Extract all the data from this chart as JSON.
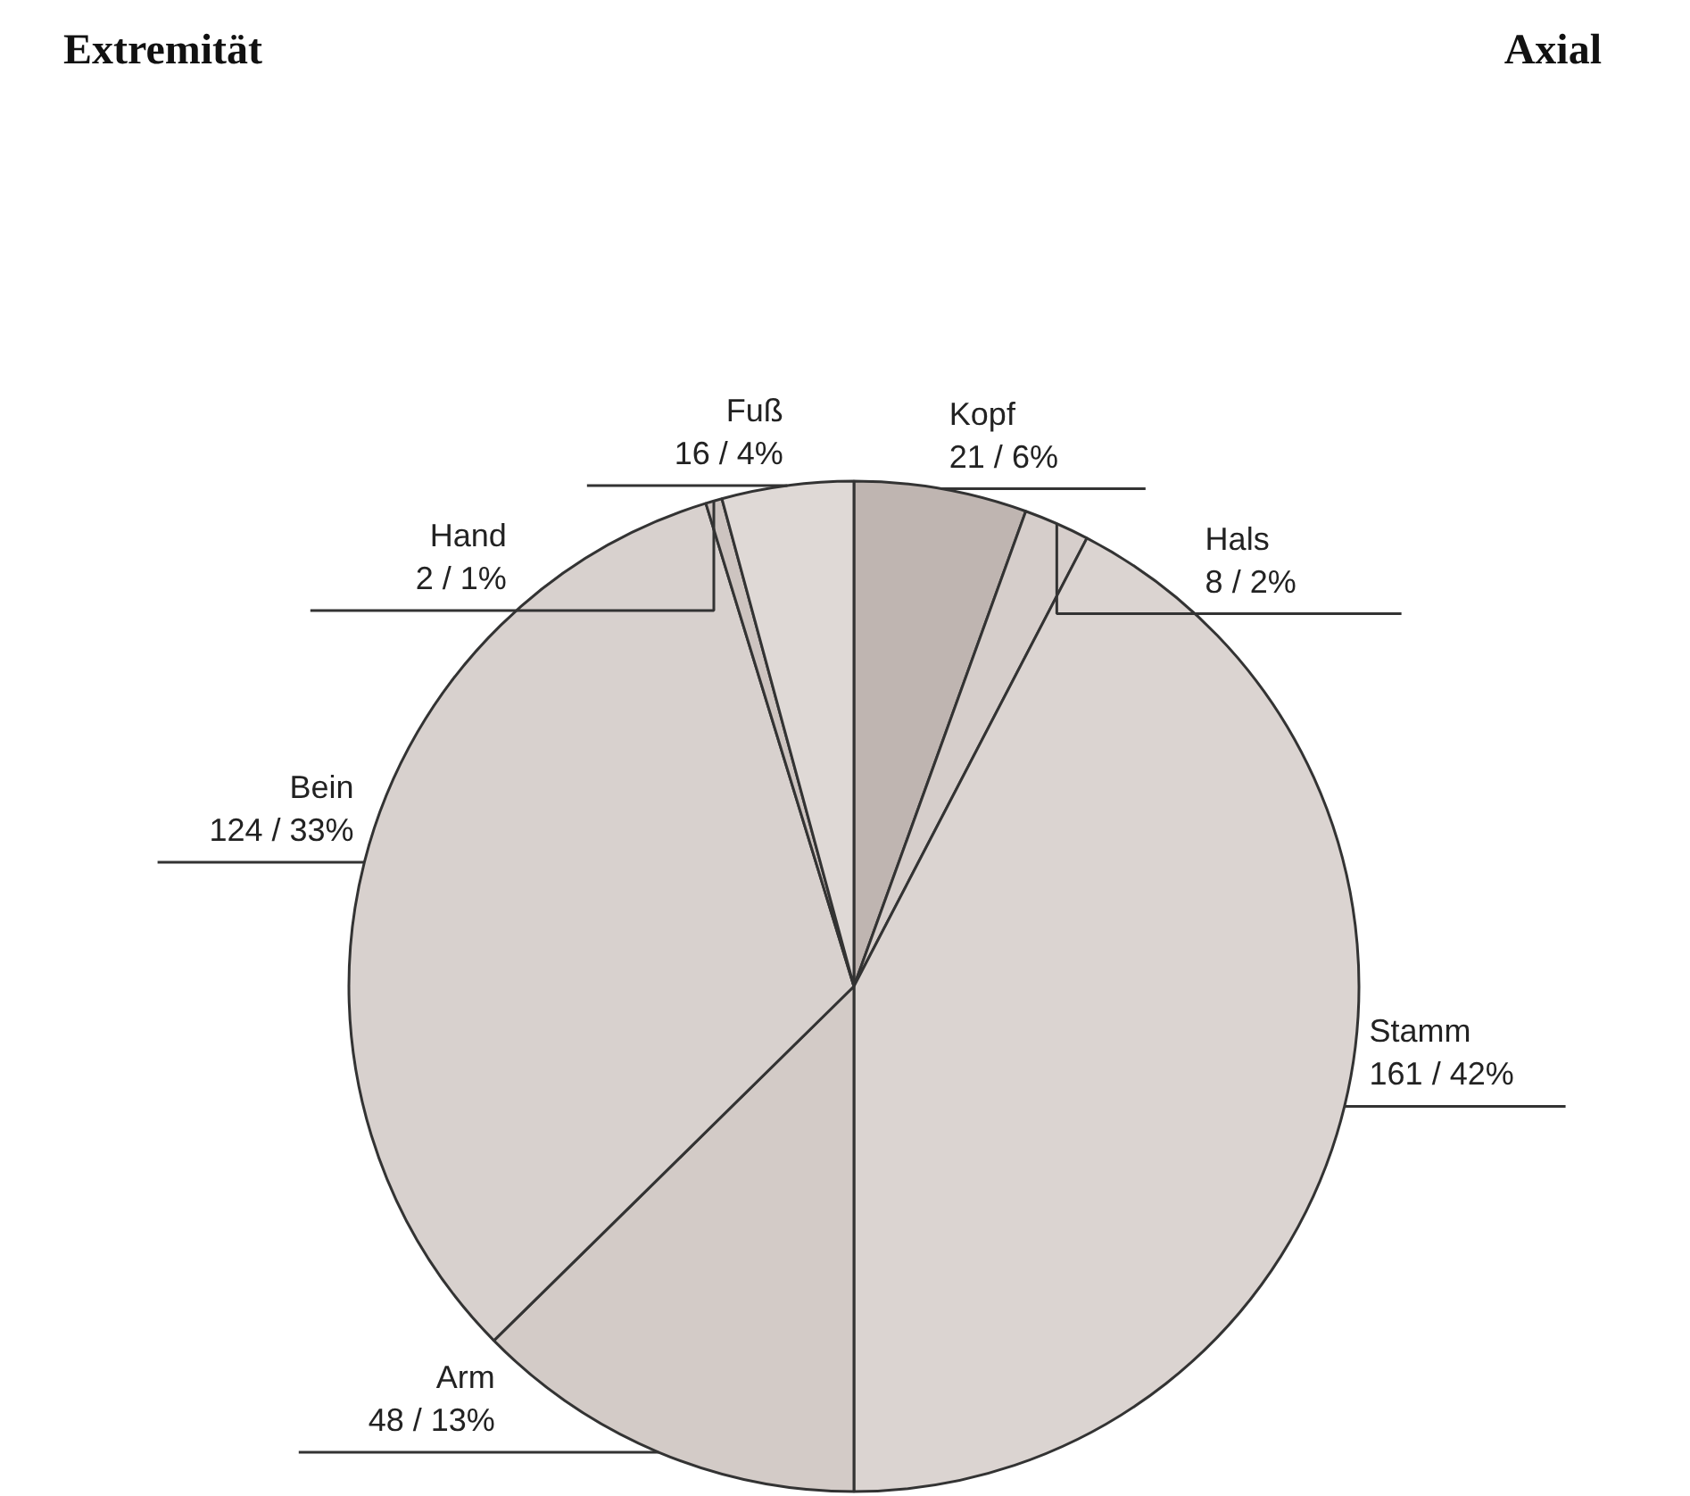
{
  "chart_data": {
    "type": "pie",
    "categories": [
      "Kopf",
      "Hals",
      "Stamm",
      "Arm",
      "Bein",
      "Hand",
      "Fuß"
    ],
    "values": [
      21,
      8,
      161,
      48,
      124,
      2,
      16
    ],
    "value_labels": [
      "21 / 6%",
      "8 / 2%",
      "161 / 42%",
      "48 / 13%",
      "124 / 33%",
      "2 / 1%",
      "16 / 4%"
    ],
    "colors": [
      "#bfb5b1",
      "#d6cecb",
      "#dbd4d1",
      "#d3cbc7",
      "#d8d1ce",
      "#cdc4c0",
      "#dfd9d6"
    ],
    "annotations": [
      "Extremität",
      "Axial"
    ]
  }
}
